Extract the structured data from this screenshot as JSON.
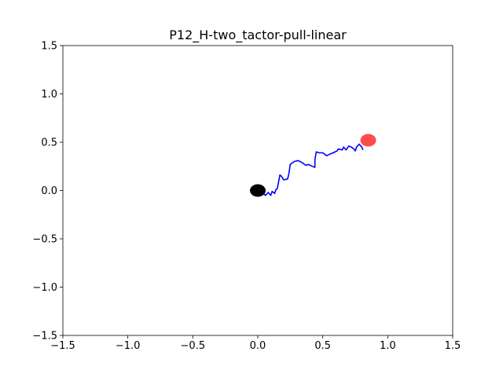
{
  "chart_data": {
    "type": "line",
    "title": "P12_H-two_tactor-pull-linear",
    "xlabel": "",
    "ylabel": "",
    "xlim": [
      -1.5,
      1.5
    ],
    "ylim": [
      -1.5,
      1.5
    ],
    "x_ticks": [
      -1.5,
      -1.0,
      -0.5,
      0.0,
      0.5,
      1.0,
      1.5
    ],
    "x_tick_labels": [
      "−1.5",
      "−1.0",
      "−0.5",
      "0.0",
      "0.5",
      "1.0",
      "1.5"
    ],
    "y_ticks": [
      -1.5,
      -1.0,
      -0.5,
      0.0,
      0.5,
      1.0,
      1.5
    ],
    "y_tick_labels": [
      "−1.5",
      "−1.0",
      "−0.5",
      "0.0",
      "0.5",
      "1.0",
      "1.5"
    ],
    "grid": false,
    "legend": "none",
    "series": [
      {
        "color": "#0000ff",
        "points": [
          [
            0.04,
            -0.03
          ],
          [
            0.06,
            -0.05
          ],
          [
            0.08,
            -0.02
          ],
          [
            0.1,
            -0.05
          ],
          [
            0.11,
            -0.01
          ],
          [
            0.13,
            -0.03
          ],
          [
            0.14,
            0.01
          ],
          [
            0.15,
            0.02
          ],
          [
            0.16,
            0.09
          ],
          [
            0.17,
            0.16
          ],
          [
            0.18,
            0.15
          ],
          [
            0.2,
            0.11
          ],
          [
            0.23,
            0.12
          ],
          [
            0.24,
            0.18
          ],
          [
            0.25,
            0.27
          ],
          [
            0.28,
            0.3
          ],
          [
            0.31,
            0.31
          ],
          [
            0.34,
            0.29
          ],
          [
            0.37,
            0.26
          ],
          [
            0.39,
            0.27
          ],
          [
            0.42,
            0.25
          ],
          [
            0.44,
            0.24
          ],
          [
            0.44,
            0.32
          ],
          [
            0.45,
            0.4
          ],
          [
            0.47,
            0.39
          ],
          [
            0.5,
            0.39
          ],
          [
            0.53,
            0.36
          ],
          [
            0.56,
            0.38
          ],
          [
            0.58,
            0.39
          ],
          [
            0.61,
            0.41
          ],
          [
            0.62,
            0.43
          ],
          [
            0.65,
            0.42
          ],
          [
            0.66,
            0.45
          ],
          [
            0.68,
            0.42
          ],
          [
            0.7,
            0.46
          ],
          [
            0.72,
            0.45
          ],
          [
            0.74,
            0.43
          ],
          [
            0.75,
            0.41
          ],
          [
            0.76,
            0.45
          ],
          [
            0.78,
            0.48
          ],
          [
            0.8,
            0.45
          ],
          [
            0.81,
            0.42
          ]
        ]
      }
    ],
    "markers": [
      {
        "name": "start",
        "x": 0.0,
        "y": 0.0,
        "color": "#000000"
      },
      {
        "name": "target",
        "x": 0.85,
        "y": 0.52,
        "color": "#ff0000",
        "opacity": 0.7
      }
    ]
  }
}
